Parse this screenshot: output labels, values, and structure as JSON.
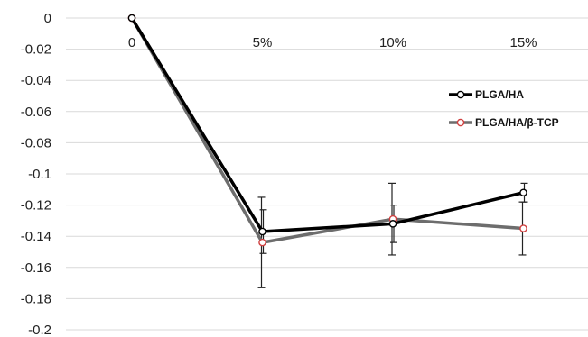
{
  "chart_data": {
    "type": "line",
    "title": "",
    "xlabel": "",
    "ylabel": "",
    "categories": [
      "0",
      "5%",
      "10%",
      "15%"
    ],
    "ylim": [
      -0.2,
      0
    ],
    "yticks": [
      0,
      -0.02,
      -0.04,
      -0.06,
      -0.08,
      -0.1,
      -0.12,
      -0.14,
      -0.16,
      -0.18,
      -0.2
    ],
    "ytick_labels": [
      "0",
      "-0.02",
      "-0.04",
      "-0.06",
      "-0.08",
      "-0.1",
      "-0.12",
      "-0.14",
      "-0.16",
      "-0.18",
      "-0.2"
    ],
    "grid": true,
    "legend_position": "right",
    "series": [
      {
        "name": "PLGA/HA",
        "values": [
          0,
          -0.137,
          -0.132,
          -0.112
        ],
        "error": [
          0,
          0.014,
          0.012,
          0.006
        ],
        "color": "#000000",
        "marker_fill": "#ffffff"
      },
      {
        "name": "PLGA/HA/β-TCP",
        "values": [
          0,
          -0.144,
          -0.129,
          -0.135
        ],
        "error": [
          0,
          0.029,
          0.023,
          0.017
        ],
        "color": "#6d6d6d",
        "marker_fill": "#ffffff",
        "marker_edge": "#d04040"
      }
    ]
  }
}
